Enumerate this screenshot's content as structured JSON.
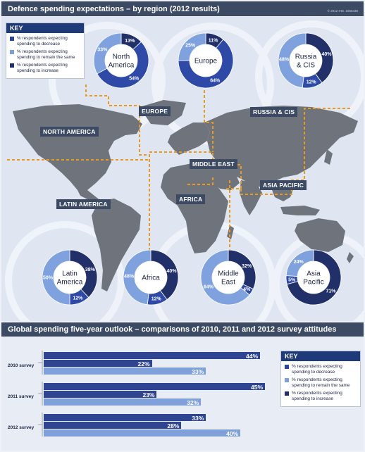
{
  "title": "Defence spending expectations – by region (2012 results)",
  "copyright": "© 2012 IHS. 1656438",
  "key": {
    "title": "KEY",
    "items": [
      {
        "label": "% respondents expecting spending to decrease",
        "color": "#2b4597"
      },
      {
        "label": "% respondents expecting spending to remain the same",
        "color": "#7f9fd8"
      },
      {
        "label": "% respondents expecting spending to increase",
        "color": "#1f2f6e"
      }
    ]
  },
  "regions": [
    "NORTH AMERICA",
    "EUROPE",
    "RUSSIA & CIS",
    "MIDDLE EAST",
    "ASIA PACIFIC",
    "AFRICA",
    "LATIN AMERICA"
  ],
  "donut_colors": {
    "decrease": "#2f4aa6",
    "same": "#7fa2de",
    "increase": "#22306a"
  },
  "chart_data": [
    {
      "type": "pie",
      "title": "Defence spending expectations – by region (2012 results)",
      "charts": [
        {
          "name": "North America",
          "decrease": 54,
          "same": 33,
          "increase": 13
        },
        {
          "name": "Europe",
          "decrease": 64,
          "same": 25,
          "increase": 11
        },
        {
          "name": "Russia & CIS",
          "decrease": 12,
          "same": 48,
          "increase": 40
        },
        {
          "name": "Latin America",
          "decrease": 12,
          "same": 50,
          "increase": 38
        },
        {
          "name": "Africa",
          "decrease": 12,
          "same": 48,
          "increase": 40
        },
        {
          "name": "Middle East",
          "decrease": 4,
          "same": 64,
          "increase": 32
        },
        {
          "name": "Asia Pacific",
          "decrease": 5,
          "same": 24,
          "increase": 71
        }
      ]
    },
    {
      "type": "bar",
      "title": "Global spending five-year outlook – comparisons of 2010, 2011 and 2012 survey attitudes",
      "categories": [
        "2010 survey",
        "2011 survey",
        "2012 survey"
      ],
      "series": [
        {
          "name": "% respondents expecting spending to decrease",
          "values": [
            44,
            45,
            33
          ]
        },
        {
          "name": "% respondents expecting spending to remain the same",
          "values": [
            22,
            23,
            28
          ]
        },
        {
          "name": "% respondents expecting spending to increase",
          "values": [
            33,
            32,
            40
          ]
        }
      ],
      "xlim": [
        0,
        45
      ]
    }
  ],
  "bar_section": {
    "title": "Global spending five-year outlook – comparisons of 2010, 2011 and 2012 survey attitudes",
    "colors": [
      "#2f4592",
      "#2f4592",
      "#7fa0d8"
    ],
    "key": {
      "title": "KEY",
      "items": [
        {
          "label": "% respondents expecting spending to decrease",
          "color": "#2b4597"
        },
        {
          "label": "% respondents expecting spending to remain the same",
          "color": "#7f9fd8"
        },
        {
          "label": "% respondents expecting spending to increase",
          "color": "#1f2f6e"
        }
      ]
    }
  }
}
